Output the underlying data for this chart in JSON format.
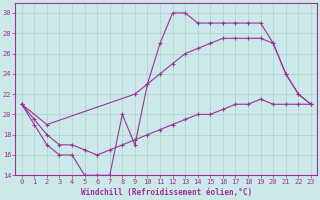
{
  "line1_x": [
    0,
    1,
    2,
    3,
    4,
    5,
    6,
    7,
    8,
    9,
    10,
    11,
    12,
    13,
    14,
    15,
    16,
    17,
    18,
    19,
    20,
    21,
    22,
    23
  ],
  "line1_y": [
    21,
    19,
    17,
    16,
    16,
    14,
    14,
    14,
    20,
    17,
    23,
    27,
    30,
    30,
    29,
    29,
    29,
    29,
    29,
    29,
    27,
    24,
    22,
    21
  ],
  "line2_x": [
    0,
    2,
    9,
    10,
    11,
    12,
    13,
    14,
    15,
    16,
    17,
    18,
    19,
    20,
    21,
    22,
    23
  ],
  "line2_y": [
    21,
    19,
    22,
    23,
    24,
    25,
    26,
    26.5,
    27,
    27.5,
    27.5,
    27.5,
    27.5,
    27,
    24,
    22,
    21
  ],
  "line3_x": [
    0,
    1,
    2,
    3,
    4,
    5,
    6,
    7,
    8,
    9,
    10,
    11,
    12,
    13,
    14,
    15,
    16,
    17,
    18,
    19,
    20,
    21,
    22,
    23
  ],
  "line3_y": [
    21,
    19.5,
    18,
    17,
    17,
    16.5,
    16,
    16.5,
    17,
    17.5,
    18,
    18.5,
    19,
    19.5,
    20,
    20,
    20.5,
    21,
    21,
    21.5,
    21,
    21,
    21,
    21
  ],
  "line_color": "#993399",
  "bg_color": "#cce8e8",
  "grid_color": "#aad0d0",
  "xlabel": "Windchill (Refroidissement éolien,°C)",
  "ylim": [
    14,
    31
  ],
  "xlim_min": -0.5,
  "xlim_max": 23.5,
  "yticks": [
    14,
    16,
    18,
    20,
    22,
    24,
    26,
    28,
    30
  ],
  "xticks": [
    0,
    1,
    2,
    3,
    4,
    5,
    6,
    7,
    8,
    9,
    10,
    11,
    12,
    13,
    14,
    15,
    16,
    17,
    18,
    19,
    20,
    21,
    22,
    23
  ]
}
